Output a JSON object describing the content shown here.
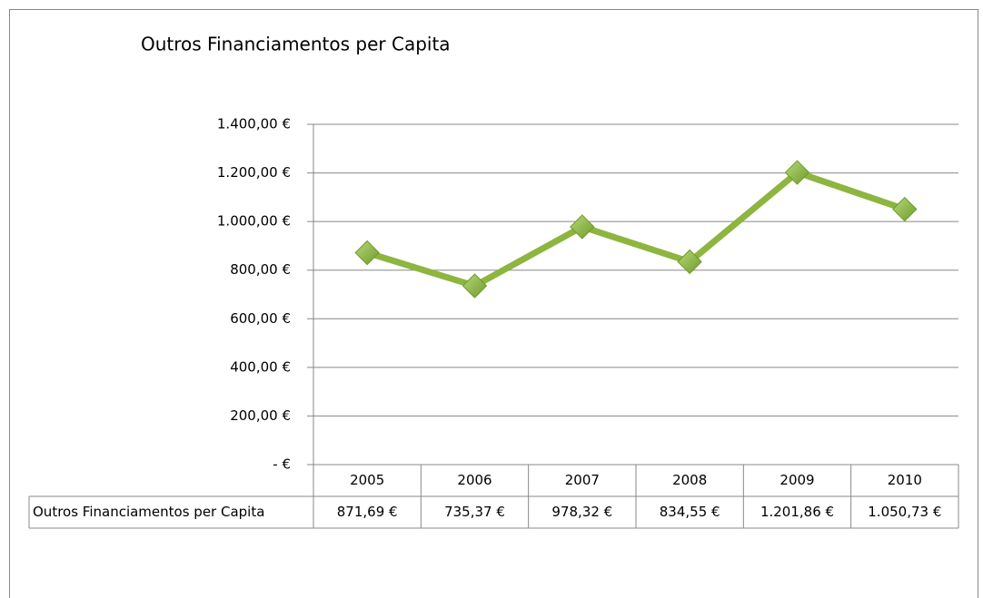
{
  "chart_data": {
    "type": "line",
    "title": "Outros Financiamentos per Capita",
    "categories": [
      "2005",
      "2006",
      "2007",
      "2008",
      "2009",
      "2010"
    ],
    "series": [
      {
        "name": "Outros Financiamentos per Capita",
        "color": "#8db53f",
        "values": [
          871.69,
          735.37,
          978.32,
          834.55,
          1201.86,
          1050.73
        ],
        "value_labels": [
          "871,69 €",
          "735,37 €",
          "978,32 €",
          "834,55 €",
          "1.201,86 €",
          "1.050,73 €"
        ]
      }
    ],
    "ylim": [
      0,
      1400
    ],
    "yticks": [
      {
        "value": 0,
        "label": "-   €"
      },
      {
        "value": 200,
        "label": "200,00 €"
      },
      {
        "value": 400,
        "label": "400,00 €"
      },
      {
        "value": 600,
        "label": "600,00 €"
      },
      {
        "value": 800,
        "label": "800,00 €"
      },
      {
        "value": 1000,
        "label": "1.000,00 €"
      },
      {
        "value": 1200,
        "label": "1.200,00 €"
      },
      {
        "value": 1400,
        "label": "1.400,00 €"
      }
    ],
    "grid": true
  }
}
